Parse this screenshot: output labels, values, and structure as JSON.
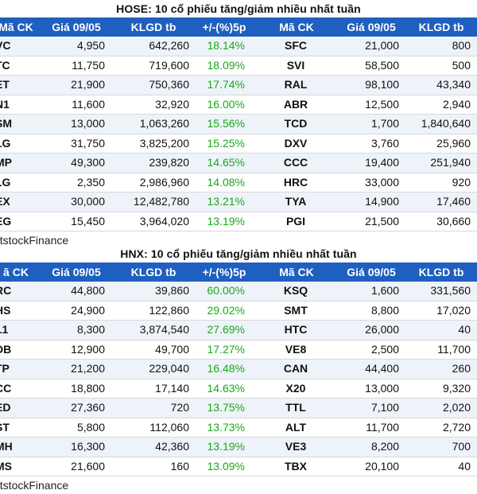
{
  "hose": {
    "title": "HOSE: 10 cổ phiếu tăng/giảm nhiều nhất tuần",
    "headers": [
      "Mã CK",
      "Giá 09/05",
      "KLGD tb",
      "+/-(%)5p",
      "Mã CK",
      "Giá 09/05",
      "KLGD tb"
    ],
    "rows": [
      [
        "VC",
        "4,950",
        "642,260",
        "18.14%",
        "SFC",
        "21,000",
        "800"
      ],
      [
        "TC",
        "11,750",
        "719,600",
        "18.09%",
        "SVI",
        "58,500",
        "500"
      ],
      [
        "ET",
        "21,900",
        "750,360",
        "17.74%",
        "RAL",
        "98,100",
        "43,340"
      ],
      [
        "N1",
        "11,600",
        "32,920",
        "16.00%",
        "ABR",
        "12,500",
        "2,940"
      ],
      [
        "SM",
        "13,000",
        "1,063,260",
        "15.56%",
        "TCD",
        "1,700",
        "1,840,640"
      ],
      [
        "LG",
        "31,750",
        "3,825,200",
        "15.25%",
        "DXV",
        "3,760",
        "25,960"
      ],
      [
        "MP",
        "49,300",
        "239,820",
        "14.65%",
        "CCC",
        "19,400",
        "251,940"
      ],
      [
        "LG",
        "2,350",
        "2,986,960",
        "14.08%",
        "HRC",
        "33,000",
        "920"
      ],
      [
        "EX",
        "30,000",
        "12,482,780",
        "13.21%",
        "TYA",
        "14,900",
        "17,460"
      ],
      [
        "EG",
        "15,450",
        "3,964,020",
        "13.19%",
        "PGI",
        "21,500",
        "30,660"
      ]
    ],
    "source": "etstockFinance"
  },
  "hnx": {
    "title": "HNX: 10 cổ phiếu tăng/giảm nhiều nhất tuần",
    "headers": [
      "ã CK",
      "Giá 09/05",
      "KLGD tb",
      "+/-(%)5p",
      "Mã CK",
      "Giá 09/05",
      "KLGD tb"
    ],
    "rows": [
      [
        "RC",
        "44,800",
        "39,860",
        "60.00%",
        "KSQ",
        "1,600",
        "331,560"
      ],
      [
        "HS",
        "24,900",
        "122,860",
        "29.02%",
        "SMT",
        "8,800",
        "17,020"
      ],
      [
        "L1",
        "8,300",
        "3,874,540",
        "27.69%",
        "HTC",
        "26,000",
        "40"
      ],
      [
        "DB",
        "12,900",
        "49,700",
        "17.27%",
        "VE8",
        "2,500",
        "11,700"
      ],
      [
        "TP",
        "21,200",
        "229,040",
        "16.48%",
        "CAN",
        "44,400",
        "260"
      ],
      [
        "CC",
        "18,800",
        "17,140",
        "14.63%",
        "X20",
        "13,000",
        "9,320"
      ],
      [
        "ED",
        "27,360",
        "720",
        "13.75%",
        "TTL",
        "7,100",
        "2,020"
      ],
      [
        "ST",
        "5,800",
        "112,060",
        "13.73%",
        "ALT",
        "11,700",
        "2,720"
      ],
      [
        "MH",
        "16,300",
        "42,360",
        "13.19%",
        "VE3",
        "8,200",
        "700"
      ],
      [
        "MS",
        "21,600",
        "160",
        "13.09%",
        "TBX",
        "20,100",
        "40"
      ]
    ],
    "source": "etstockFinance"
  },
  "colors": {
    "header_bg": "#1f5fbf",
    "header_text": "#ffffff",
    "gain_text": "#1aa81a",
    "row_alt": "#eef3fa"
  }
}
